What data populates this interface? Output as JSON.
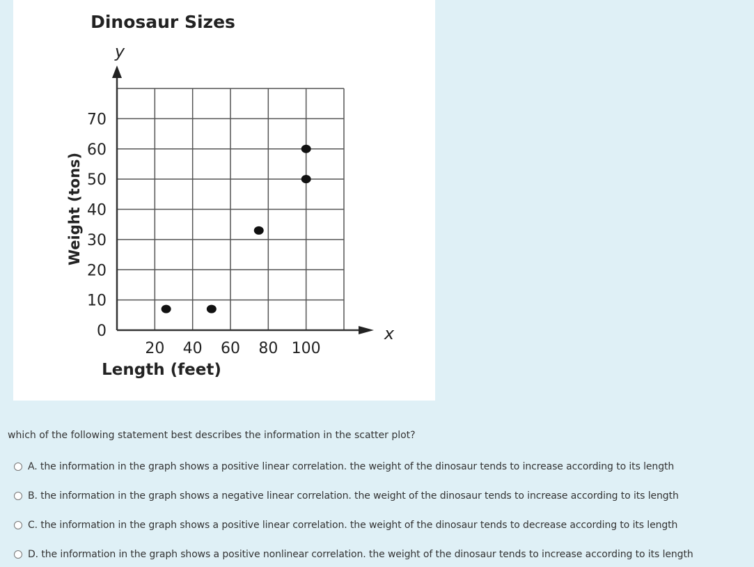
{
  "chart_data": {
    "type": "scatter",
    "title": "Dinosaur Sizes",
    "xlabel": "Length (feet)",
    "ylabel": "Weight (tons)",
    "x_axis_letter": "x",
    "y_axis_letter": "y",
    "xlim": [
      0,
      120
    ],
    "ylim": [
      0,
      80
    ],
    "x_ticks": [
      20,
      40,
      60,
      80,
      100
    ],
    "y_ticks": [
      0,
      10,
      20,
      30,
      40,
      50,
      60,
      70
    ],
    "grid": true,
    "points": [
      {
        "x": 26,
        "y": 7
      },
      {
        "x": 50,
        "y": 7
      },
      {
        "x": 75,
        "y": 33
      },
      {
        "x": 100,
        "y": 50
      },
      {
        "x": 100,
        "y": 60
      }
    ]
  },
  "question": {
    "prompt": "which of the following statement best describes the information in the scatter plot?",
    "options": [
      {
        "label": "A. the information in the graph shows a positive linear correlation. the weight of the dinosaur tends to increase according to its length",
        "selected": false
      },
      {
        "label": "B. the information in the graph shows a negative linear correlation. the weight of the dinosaur tends to increase according to its length",
        "selected": false
      },
      {
        "label": "C. the information in the graph shows a positive linear correlation. the weight of the dinosaur tends to decrease according to its length",
        "selected": false
      },
      {
        "label": "D. the information in the graph shows a positive nonlinear correlation. the weight of the dinosaur tends to increase according to its length",
        "selected": false
      }
    ]
  },
  "colors": {
    "background": "#dff0f6",
    "chart_background": "#ffffff",
    "grid": "#555555",
    "point": "#111111"
  }
}
